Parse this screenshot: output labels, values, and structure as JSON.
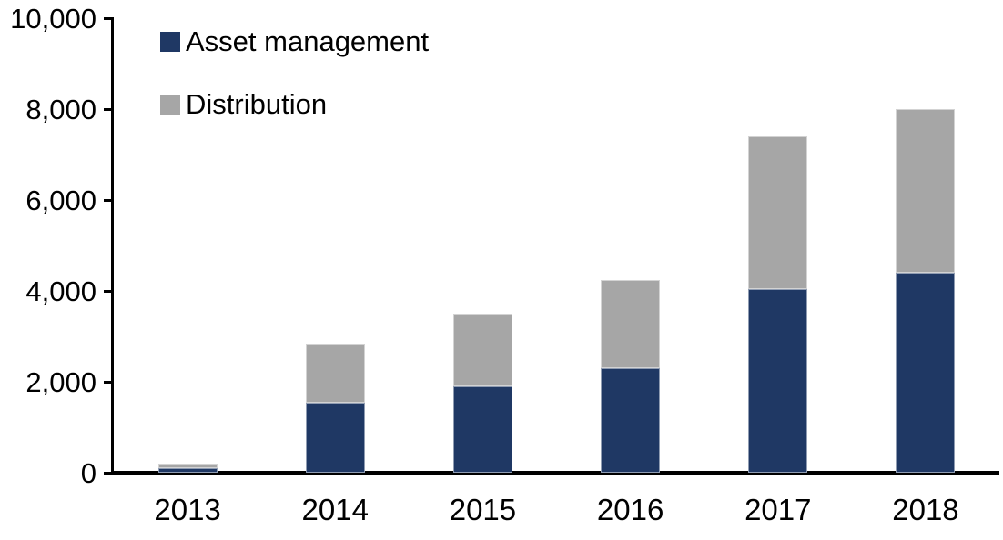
{
  "chart_data": {
    "type": "bar",
    "stacked": true,
    "title": "",
    "xlabel": "",
    "ylabel": "",
    "categories": [
      "2013",
      "2014",
      "2015",
      "2016",
      "2017",
      "2018"
    ],
    "series": [
      {
        "name": "Asset management",
        "color": "#1F3864",
        "values": [
          100,
          1550,
          1900,
          2300,
          4050,
          4400
        ]
      },
      {
        "name": "Distribution",
        "color": "#A6A6A6",
        "values": [
          100,
          1300,
          1600,
          1950,
          3350,
          3600
        ]
      }
    ],
    "totals": [
      200,
      2850,
      3500,
      4250,
      7400,
      8000
    ],
    "ylim": [
      0,
      10000
    ],
    "yticks": [
      0,
      2000,
      4000,
      6000,
      8000,
      10000
    ],
    "ytick_labels": [
      "0",
      "2,000",
      "4,000",
      "6,000",
      "8,000",
      "10,000"
    ],
    "grid": false,
    "legend_position": "top-left"
  },
  "legend": {
    "items": [
      {
        "label": "Asset management",
        "color": "#1F3864"
      },
      {
        "label": "Distribution",
        "color": "#A6A6A6"
      }
    ]
  },
  "colors": {
    "axis": "#000000",
    "background": "#FFFFFF",
    "text": "#000000"
  }
}
